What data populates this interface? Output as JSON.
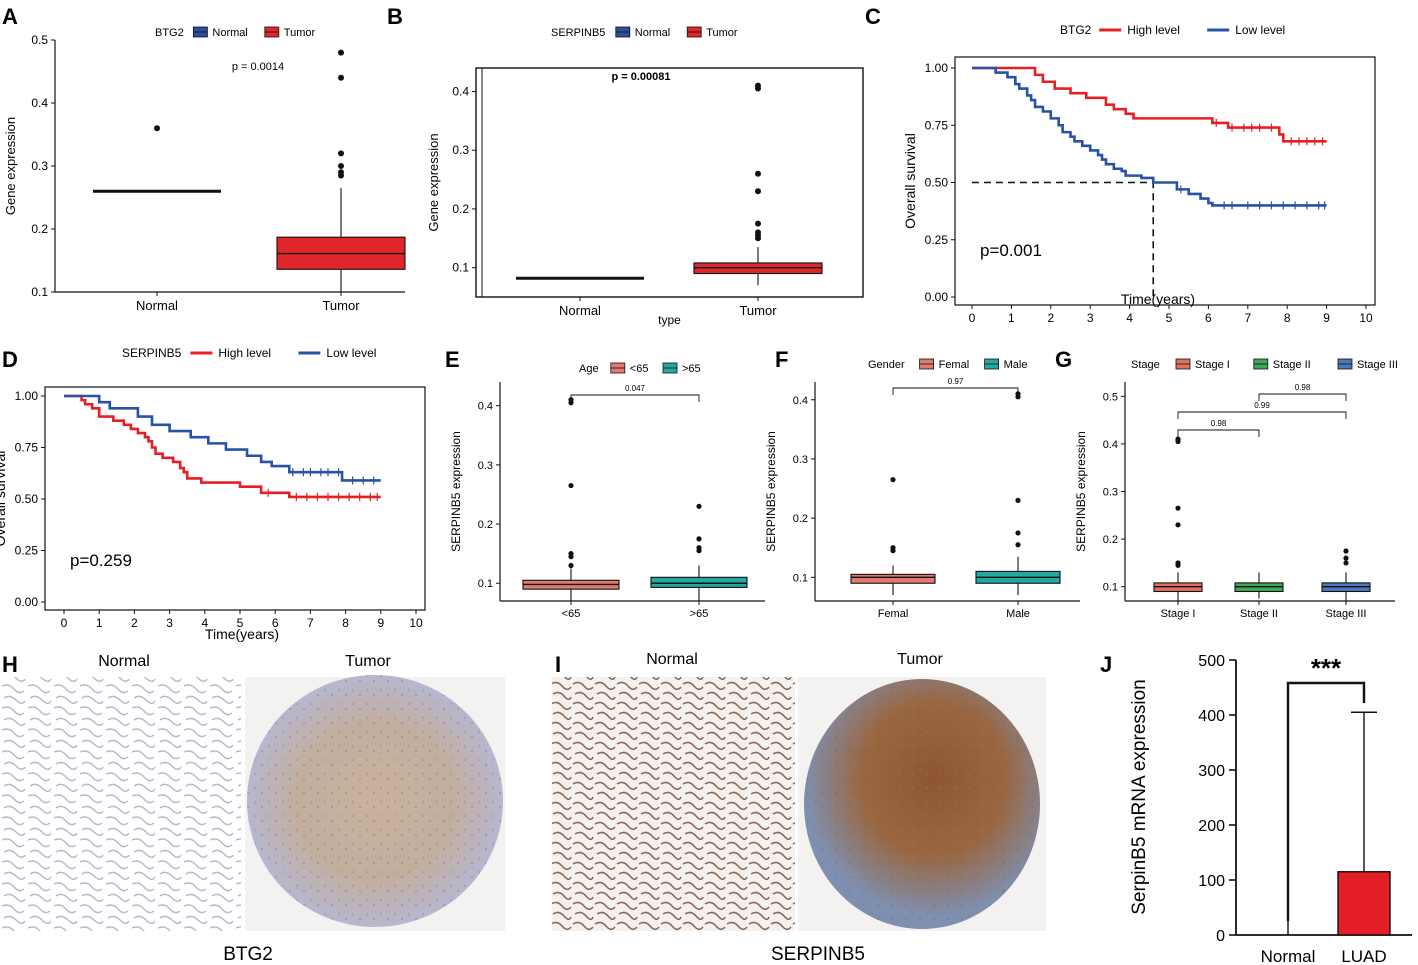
{
  "panel_letters": [
    "A",
    "B",
    "C",
    "D",
    "E",
    "F",
    "G",
    "H",
    "I",
    "J"
  ],
  "colors": {
    "normal_blue": "#2b4fa0",
    "tumor_red": "#e0262a",
    "high_red": "#e51f26",
    "low_blue": "#2852a6",
    "age_lt65": "#e27a6f",
    "age_gt65": "#22a9a1",
    "stage1": "#e2705f",
    "stage2": "#3ca95a",
    "stage3": "#4d79b8",
    "bar_red": "#e31e24"
  },
  "chart_data": [
    {
      "panel": "A",
      "type": "box",
      "legend_title": "BTG2",
      "legend": [
        "Normal",
        "Tumor"
      ],
      "pvalue": "p = 0.0014",
      "ylabel": "Gene expression",
      "xlabel": "",
      "ylim": [
        0.1,
        0.5
      ],
      "yticks": [
        "0.1",
        "0.2",
        "0.3",
        "0.4",
        "0.5"
      ],
      "categories": [
        "Normal",
        "Tumor"
      ],
      "boxes": [
        {
          "q1": 0.259,
          "median": 0.26,
          "q3": 0.261,
          "lo": 0.259,
          "hi": 0.261,
          "outliers": [
            0.36
          ]
        },
        {
          "q1": 0.136,
          "median": 0.161,
          "q3": 0.187,
          "lo": 0.1,
          "hi": 0.265,
          "outliers": [
            0.48,
            0.44,
            0.32,
            0.3,
            0.29,
            0.285
          ]
        }
      ]
    },
    {
      "panel": "B",
      "type": "box",
      "legend_title": "SERPINB5",
      "legend": [
        "Normal",
        "Tumor"
      ],
      "pvalue": "p = 0.00081",
      "ylabel": "Gene expression",
      "xlabel": "type",
      "ylim": [
        0.05,
        0.44
      ],
      "yticks": [
        "0.1",
        "0.2",
        "0.3",
        "0.4"
      ],
      "categories": [
        "Normal",
        "Tumor"
      ],
      "boxes": [
        {
          "q1": 0.081,
          "median": 0.082,
          "q3": 0.083,
          "lo": 0.081,
          "hi": 0.083,
          "outliers": []
        },
        {
          "q1": 0.09,
          "median": 0.1,
          "q3": 0.108,
          "lo": 0.07,
          "hi": 0.135,
          "outliers": [
            0.41,
            0.405,
            0.26,
            0.23,
            0.175,
            0.16,
            0.155,
            0.15
          ]
        }
      ]
    },
    {
      "panel": "C",
      "type": "survival",
      "legend_title": "BTG2",
      "legend": [
        "High level",
        "Low level"
      ],
      "pvalue": "p=0.001",
      "ylabel": "Overall survival",
      "xlabel": "Time(years)",
      "xlim": [
        0,
        10
      ],
      "ylim": [
        0,
        1
      ],
      "xticks": [
        "0",
        "1",
        "2",
        "3",
        "4",
        "5",
        "6",
        "7",
        "8",
        "9",
        "10"
      ],
      "yticks": [
        "0.00",
        "0.25",
        "0.50",
        "0.75",
        "1.00"
      ],
      "median_marker": {
        "x": 4.6,
        "y": 0.5
      },
      "series": [
        {
          "name": "High level",
          "steps": [
            [
              0,
              1
            ],
            [
              1.6,
              0.97
            ],
            [
              1.8,
              0.94
            ],
            [
              2.1,
              0.91
            ],
            [
              2.5,
              0.89
            ],
            [
              2.9,
              0.87
            ],
            [
              3.4,
              0.84
            ],
            [
              3.6,
              0.82
            ],
            [
              3.9,
              0.8
            ],
            [
              4.1,
              0.78
            ],
            [
              6.1,
              0.76
            ],
            [
              6.5,
              0.74
            ],
            [
              7.8,
              0.71
            ],
            [
              7.9,
              0.68
            ],
            [
              9,
              0.68
            ]
          ],
          "censor": [
            6.2,
            6.6,
            6.9,
            7.1,
            7.3,
            7.6,
            8.1,
            8.3,
            8.5,
            8.7,
            8.9
          ]
        },
        {
          "name": "Low level",
          "steps": [
            [
              0,
              1
            ],
            [
              0.6,
              0.98
            ],
            [
              0.9,
              0.96
            ],
            [
              1.1,
              0.93
            ],
            [
              1.2,
              0.91
            ],
            [
              1.4,
              0.88
            ],
            [
              1.5,
              0.86
            ],
            [
              1.6,
              0.83
            ],
            [
              1.8,
              0.81
            ],
            [
              2.0,
              0.78
            ],
            [
              2.2,
              0.75
            ],
            [
              2.3,
              0.72
            ],
            [
              2.5,
              0.7
            ],
            [
              2.6,
              0.68
            ],
            [
              2.8,
              0.66
            ],
            [
              3.0,
              0.64
            ],
            [
              3.2,
              0.62
            ],
            [
              3.3,
              0.6
            ],
            [
              3.4,
              0.58
            ],
            [
              3.6,
              0.56
            ],
            [
              3.8,
              0.55
            ],
            [
              3.9,
              0.53
            ],
            [
              4.3,
              0.52
            ],
            [
              4.6,
              0.5
            ],
            [
              5.2,
              0.47
            ],
            [
              5.5,
              0.45
            ],
            [
              5.8,
              0.43
            ],
            [
              6.0,
              0.41
            ],
            [
              6.1,
              0.4
            ],
            [
              9,
              0.4
            ]
          ],
          "censor": [
            5.3,
            6.4,
            6.6,
            7.0,
            7.3,
            7.6,
            7.9,
            8.2,
            8.5,
            8.8,
            8.95
          ]
        }
      ]
    },
    {
      "panel": "D",
      "type": "survival",
      "legend_title": "SERPINB5",
      "legend": [
        "High level",
        "Low level"
      ],
      "pvalue": "p=0.259",
      "ylabel": "Overall survival",
      "xlabel": "Time(years)",
      "xlim": [
        0,
        10
      ],
      "ylim": [
        0,
        1
      ],
      "xticks": [
        "0",
        "1",
        "2",
        "3",
        "4",
        "5",
        "6",
        "7",
        "8",
        "9",
        "10"
      ],
      "yticks": [
        "0.00",
        "0.25",
        "0.50",
        "0.75",
        "1.00"
      ],
      "series": [
        {
          "name": "High level",
          "steps": [
            [
              0,
              1
            ],
            [
              0.5,
              0.98
            ],
            [
              0.6,
              0.96
            ],
            [
              0.8,
              0.94
            ],
            [
              1.0,
              0.9
            ],
            [
              1.4,
              0.88
            ],
            [
              1.7,
              0.86
            ],
            [
              1.9,
              0.84
            ],
            [
              2.1,
              0.82
            ],
            [
              2.3,
              0.8
            ],
            [
              2.4,
              0.78
            ],
            [
              2.5,
              0.75
            ],
            [
              2.6,
              0.72
            ],
            [
              2.8,
              0.7
            ],
            [
              3.1,
              0.68
            ],
            [
              3.3,
              0.65
            ],
            [
              3.4,
              0.63
            ],
            [
              3.5,
              0.6
            ],
            [
              3.9,
              0.58
            ],
            [
              5.0,
              0.56
            ],
            [
              5.6,
              0.53
            ],
            [
              6.4,
              0.51
            ],
            [
              9,
              0.51
            ]
          ],
          "censor": [
            5.8,
            6.6,
            6.9,
            7.2,
            7.5,
            7.8,
            8.1,
            8.4,
            8.7,
            8.9
          ]
        },
        {
          "name": "Low level",
          "steps": [
            [
              0,
              1
            ],
            [
              1.0,
              0.97
            ],
            [
              1.3,
              0.94
            ],
            [
              2.1,
              0.9
            ],
            [
              2.5,
              0.86
            ],
            [
              3.0,
              0.83
            ],
            [
              3.6,
              0.8
            ],
            [
              4.1,
              0.77
            ],
            [
              4.6,
              0.74
            ],
            [
              5.2,
              0.71
            ],
            [
              5.6,
              0.68
            ],
            [
              5.9,
              0.66
            ],
            [
              6.4,
              0.63
            ],
            [
              7.9,
              0.59
            ],
            [
              9,
              0.59
            ]
          ],
          "censor": [
            6.5,
            6.8,
            7.0,
            7.3,
            7.5,
            7.8,
            8.2,
            8.5,
            8.8
          ]
        }
      ]
    },
    {
      "panel": "E",
      "type": "box",
      "legend_title": "Age",
      "legend": [
        "<65",
        ">65"
      ],
      "pvalue": "0.047",
      "ylabel": "SERPINB5  expression",
      "xlabel": "",
      "ylim": [
        0.07,
        0.44
      ],
      "yticks": [
        "0.1",
        "0.2",
        "0.3",
        "0.4"
      ],
      "categories": [
        "<65",
        ">65"
      ],
      "boxes": [
        {
          "q1": 0.09,
          "median": 0.098,
          "q3": 0.105,
          "lo": 0.07,
          "hi": 0.125,
          "outliers": [
            0.41,
            0.405,
            0.265,
            0.15,
            0.145,
            0.13
          ]
        },
        {
          "q1": 0.093,
          "median": 0.1,
          "q3": 0.11,
          "lo": 0.07,
          "hi": 0.13,
          "outliers": [
            0.23,
            0.175,
            0.16,
            0.155
          ]
        }
      ]
    },
    {
      "panel": "F",
      "type": "box",
      "legend_title": "Gender",
      "legend": [
        "Femal",
        "Male"
      ],
      "pvalue": "0.97",
      "ylabel": "SERPINB5  expression",
      "xlabel": "",
      "ylim": [
        0.06,
        0.43
      ],
      "yticks": [
        "0.1",
        "0.2",
        "0.3",
        "0.4"
      ],
      "categories": [
        "Femal",
        "Male"
      ],
      "boxes": [
        {
          "q1": 0.09,
          "median": 0.1,
          "q3": 0.105,
          "lo": 0.07,
          "hi": 0.12,
          "outliers": [
            0.265,
            0.15,
            0.145
          ]
        },
        {
          "q1": 0.09,
          "median": 0.1,
          "q3": 0.11,
          "lo": 0.07,
          "hi": 0.135,
          "outliers": [
            0.41,
            0.405,
            0.23,
            0.175,
            0.155
          ]
        }
      ]
    },
    {
      "panel": "G",
      "type": "box",
      "legend_title": "Stage",
      "legend": [
        "Stage I",
        "Stage II",
        "Stage III"
      ],
      "comparisons": [
        {
          "pair": [
            0,
            1
          ],
          "p": "0.98"
        },
        {
          "pair": [
            0,
            2
          ],
          "p": "0.99"
        },
        {
          "pair": [
            1,
            2
          ],
          "p": "0.98"
        }
      ],
      "ylabel": "SERPINB5  expression",
      "xlabel": "",
      "ylim": [
        0.07,
        0.53
      ],
      "yticks": [
        "0.1",
        "0.2",
        "0.3",
        "0.4",
        "0.5"
      ],
      "categories": [
        "Stage I",
        "Stage II",
        "Stage III"
      ],
      "boxes": [
        {
          "q1": 0.09,
          "median": 0.1,
          "q3": 0.108,
          "lo": 0.07,
          "hi": 0.13,
          "outliers": [
            0.41,
            0.405,
            0.265,
            0.23,
            0.15,
            0.145
          ]
        },
        {
          "q1": 0.09,
          "median": 0.1,
          "q3": 0.108,
          "lo": 0.075,
          "hi": 0.13,
          "outliers": []
        },
        {
          "q1": 0.09,
          "median": 0.1,
          "q3": 0.108,
          "lo": 0.07,
          "hi": 0.13,
          "outliers": [
            0.175,
            0.16,
            0.15
          ]
        }
      ]
    },
    {
      "panel": "J",
      "type": "bar",
      "ylabel": "SerpinB5 mRNA expression",
      "significance": "***",
      "categories": [
        "Normal",
        "LUAD"
      ],
      "values": [
        0,
        115
      ],
      "error_upper": [
        0,
        405
      ],
      "ylim": [
        0,
        500
      ],
      "yticks": [
        "0",
        "100",
        "200",
        "300",
        "400",
        "500"
      ]
    }
  ],
  "histology": {
    "H": {
      "normal_label": "Normal",
      "tumor_label": "Tumor",
      "gene": "BTG2"
    },
    "I": {
      "normal_label": "Normal",
      "tumor_label": "Tumor",
      "gene": "SERPINB5"
    }
  }
}
